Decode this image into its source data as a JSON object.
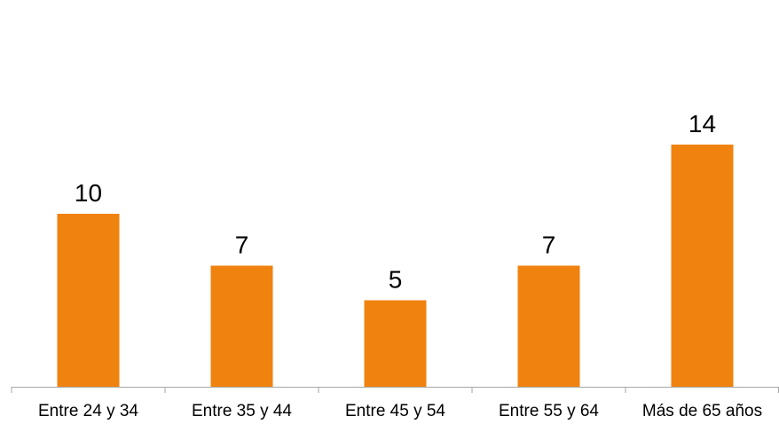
{
  "chart_data": {
    "type": "bar",
    "title": "",
    "xlabel": "",
    "ylabel": "",
    "categories": [
      "Entre 24 y 34",
      "Entre 35 y 44",
      "Entre 45 y 54",
      "Entre 55 y 64",
      "Más de 65 años"
    ],
    "values": [
      10,
      7,
      5,
      7,
      14
    ],
    "data_labels": [
      "10",
      "7",
      "5",
      "7",
      "14"
    ],
    "ylim": [
      0,
      16
    ],
    "grid": false,
    "legend": "none",
    "bar_color": "#F0820F",
    "axis_color": "#A6A6A6"
  }
}
